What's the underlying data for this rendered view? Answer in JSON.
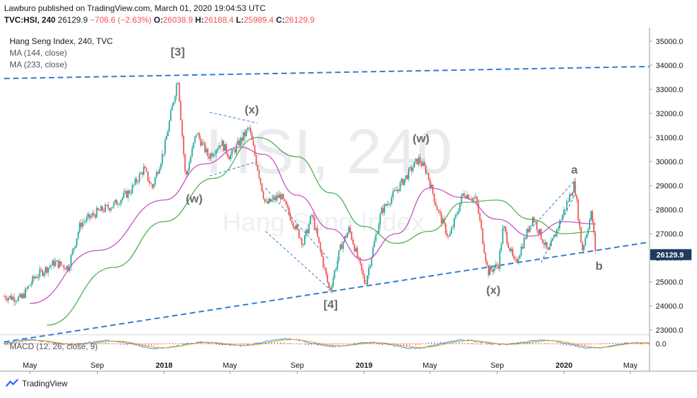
{
  "header": {
    "line1": "Lawburo published on TradingView.com, March 01, 2020 19:04:53 UTC",
    "symbol": "TVC:HSI, 240",
    "last": "26129.9",
    "change": "−706.6 (−2.63%)",
    "o_label": "O:",
    "o_value": "26038.9",
    "h_label": "H:",
    "h_value": "26188.4",
    "l_label": "L:",
    "l_value": "25989.4",
    "c_label": "C:",
    "c_value": "26129.9"
  },
  "legend": {
    "title": "Hang Seng Index, 240, TVC",
    "ma1": "MA (144, close)",
    "ma2": "MA (233, close)",
    "macd": "MACD (12, 26, close, 9)"
  },
  "watermark": {
    "symbol": "HSI, 240",
    "name": "Hang Seng Index"
  },
  "footer": {
    "brand": "TradingView"
  },
  "colors": {
    "ma144": "#c74fc7",
    "ma233": "#4caf50",
    "trendline": "#2f7bd1",
    "up": "#26a69a",
    "down": "#ef5350",
    "price_label_bg": "#1e3a5f",
    "wave_label": "#6b6b6b"
  },
  "chart_data": {
    "type": "candlestick",
    "y_range": [
      22800,
      35400
    ],
    "y_ticks": [
      23000,
      24000,
      25000,
      26000,
      27000,
      28000,
      29000,
      30000,
      31000,
      32000,
      33000,
      34000,
      35000
    ],
    "y_tick_labels": [
      "23000.0",
      "24000.0",
      "25000.0",
      "26000.0",
      "27000.0",
      "28000.0",
      "29000.0",
      "30000.0",
      "31000.0",
      "32000.0",
      "33000.0",
      "34000.0",
      "35000.0"
    ],
    "x_range": [
      "2017-03-15",
      "2020-06-05"
    ],
    "x_ticks": [
      {
        "date": "2017-05-01",
        "label": "May"
      },
      {
        "date": "2017-09-01",
        "label": "Sep"
      },
      {
        "date": "2018-01-01",
        "label": "2018"
      },
      {
        "date": "2018-05-01",
        "label": "May"
      },
      {
        "date": "2018-09-01",
        "label": "Sep"
      },
      {
        "date": "2019-01-01",
        "label": "2019"
      },
      {
        "date": "2019-05-01",
        "label": "May"
      },
      {
        "date": "2019-09-01",
        "label": "Sep"
      },
      {
        "date": "2020-01-01",
        "label": "2020"
      },
      {
        "date": "2020-05-01",
        "label": "May"
      }
    ],
    "last_price": 26129.9,
    "last_price_label": "26129.9",
    "price_path": [
      {
        "date": "2017-03-15",
        "price": 24400
      },
      {
        "date": "2017-04-15",
        "price": 24300
      },
      {
        "date": "2017-05-10",
        "price": 25200
      },
      {
        "date": "2017-06-15",
        "price": 25800
      },
      {
        "date": "2017-07-10",
        "price": 25600
      },
      {
        "date": "2017-08-01",
        "price": 27400
      },
      {
        "date": "2017-09-01",
        "price": 27900
      },
      {
        "date": "2017-10-01",
        "price": 28200
      },
      {
        "date": "2017-11-01",
        "price": 28800
      },
      {
        "date": "2017-11-25",
        "price": 29700
      },
      {
        "date": "2017-12-10",
        "price": 28900
      },
      {
        "date": "2018-01-01",
        "price": 30500
      },
      {
        "date": "2018-01-26",
        "price": 33480
      },
      {
        "date": "2018-02-09",
        "price": 29300
      },
      {
        "date": "2018-03-01",
        "price": 31200
      },
      {
        "date": "2018-03-23",
        "price": 30200
      },
      {
        "date": "2018-04-15",
        "price": 30800
      },
      {
        "date": "2018-05-01",
        "price": 30200
      },
      {
        "date": "2018-06-05",
        "price": 31400
      },
      {
        "date": "2018-07-05",
        "price": 28200
      },
      {
        "date": "2018-08-01",
        "price": 28600
      },
      {
        "date": "2018-09-12",
        "price": 26600
      },
      {
        "date": "2018-09-28",
        "price": 27800
      },
      {
        "date": "2018-10-30",
        "price": 24600
      },
      {
        "date": "2018-11-20",
        "price": 26500
      },
      {
        "date": "2018-12-05",
        "price": 27200
      },
      {
        "date": "2019-01-03",
        "price": 24900
      },
      {
        "date": "2019-02-01",
        "price": 27900
      },
      {
        "date": "2019-03-01",
        "price": 28800
      },
      {
        "date": "2019-04-10",
        "price": 30100
      },
      {
        "date": "2019-04-25",
        "price": 29600
      },
      {
        "date": "2019-05-15",
        "price": 28000
      },
      {
        "date": "2019-06-05",
        "price": 26800
      },
      {
        "date": "2019-07-01",
        "price": 28700
      },
      {
        "date": "2019-07-25",
        "price": 28400
      },
      {
        "date": "2019-08-15",
        "price": 25400
      },
      {
        "date": "2019-09-03",
        "price": 25700
      },
      {
        "date": "2019-09-12",
        "price": 27300
      },
      {
        "date": "2019-10-03",
        "price": 25700
      },
      {
        "date": "2019-11-05",
        "price": 27700
      },
      {
        "date": "2019-12-03",
        "price": 26200
      },
      {
        "date": "2020-01-20",
        "price": 29100
      },
      {
        "date": "2020-02-03",
        "price": 26300
      },
      {
        "date": "2020-02-20",
        "price": 27900
      },
      {
        "date": "2020-02-28",
        "price": 26130
      }
    ],
    "ma144": [
      {
        "date": "2017-05-01",
        "price": 24100
      },
      {
        "date": "2017-09-01",
        "price": 26300
      },
      {
        "date": "2018-01-01",
        "price": 28400
      },
      {
        "date": "2018-03-15",
        "price": 29900
      },
      {
        "date": "2018-05-20",
        "price": 30600
      },
      {
        "date": "2018-07-01",
        "price": 30300
      },
      {
        "date": "2018-09-01",
        "price": 28600
      },
      {
        "date": "2018-11-01",
        "price": 27200
      },
      {
        "date": "2019-01-01",
        "price": 25900
      },
      {
        "date": "2019-03-01",
        "price": 27000
      },
      {
        "date": "2019-05-01",
        "price": 28900
      },
      {
        "date": "2019-07-01",
        "price": 28500
      },
      {
        "date": "2019-09-01",
        "price": 27600
      },
      {
        "date": "2019-11-01",
        "price": 26900
      },
      {
        "date": "2020-01-01",
        "price": 27500
      },
      {
        "date": "2020-02-28",
        "price": 27400
      }
    ],
    "ma233": [
      {
        "date": "2017-06-01",
        "price": 23200
      },
      {
        "date": "2017-10-01",
        "price": 25600
      },
      {
        "date": "2018-01-01",
        "price": 27500
      },
      {
        "date": "2018-04-01",
        "price": 29300
      },
      {
        "date": "2018-06-20",
        "price": 31000
      },
      {
        "date": "2018-09-01",
        "price": 30200
      },
      {
        "date": "2018-11-01",
        "price": 28700
      },
      {
        "date": "2019-01-01",
        "price": 27300
      },
      {
        "date": "2019-03-01",
        "price": 26600
      },
      {
        "date": "2019-05-01",
        "price": 27100
      },
      {
        "date": "2019-07-01",
        "price": 28300
      },
      {
        "date": "2019-09-01",
        "price": 28400
      },
      {
        "date": "2019-11-01",
        "price": 27600
      },
      {
        "date": "2020-01-01",
        "price": 27000
      },
      {
        "date": "2020-02-28",
        "price": 27100
      }
    ],
    "trendlines": [
      {
        "from": {
          "date": "2017-03-15",
          "price": 33450
        },
        "to": {
          "date": "2020-06-05",
          "price": 33950
        },
        "style": "dashed"
      },
      {
        "from": {
          "date": "2017-03-15",
          "price": 22500
        },
        "to": {
          "date": "2020-06-05",
          "price": 26650
        },
        "style": "dashed"
      },
      {
        "from": {
          "date": "2018-03-25",
          "price": 32050
        },
        "to": {
          "date": "2018-06-20",
          "price": 31600
        },
        "style": "thin-dashed"
      },
      {
        "from": {
          "date": "2018-03-25",
          "price": 29400
        },
        "to": {
          "date": "2018-06-20",
          "price": 30000
        },
        "style": "thin-dashed"
      },
      {
        "from": {
          "date": "2018-07-05",
          "price": 28900
        },
        "to": {
          "date": "2018-10-30",
          "price": 25900
        },
        "style": "thin-dashed"
      },
      {
        "from": {
          "date": "2018-07-05",
          "price": 27100
        },
        "to": {
          "date": "2018-10-30",
          "price": 24700
        },
        "style": "thin-dashed"
      },
      {
        "from": {
          "date": "2019-11-05",
          "price": 27300
        },
        "to": {
          "date": "2020-01-20",
          "price": 29200
        },
        "style": "thin-dashed"
      },
      {
        "from": {
          "date": "2019-11-20",
          "price": 25800
        },
        "to": {
          "date": "2020-01-20",
          "price": 28600
        },
        "style": "thin-dashed"
      }
    ],
    "wave_labels": [
      {
        "text": "[3]",
        "date": "2018-01-26",
        "price": 34400
      },
      {
        "text": "(x)",
        "date": "2018-06-10",
        "price": 32000
      },
      {
        "text": "(w)",
        "date": "2018-02-25",
        "price": 28300
      },
      {
        "text": "(w)",
        "date": "2019-04-15",
        "price": 30800
      },
      {
        "text": "[4]",
        "date": "2018-11-01",
        "price": 23900
      },
      {
        "text": "(x)",
        "date": "2019-08-25",
        "price": 24500
      },
      {
        "text": "a",
        "date": "2020-01-20",
        "price": 29500
      },
      {
        "text": "b",
        "date": "2020-03-05",
        "price": 25500
      }
    ],
    "macd": {
      "label": "MACD (12, 26, close, 9)",
      "y_tick_labels": [
        "0.0"
      ],
      "range": [
        -1,
        1
      ]
    }
  }
}
